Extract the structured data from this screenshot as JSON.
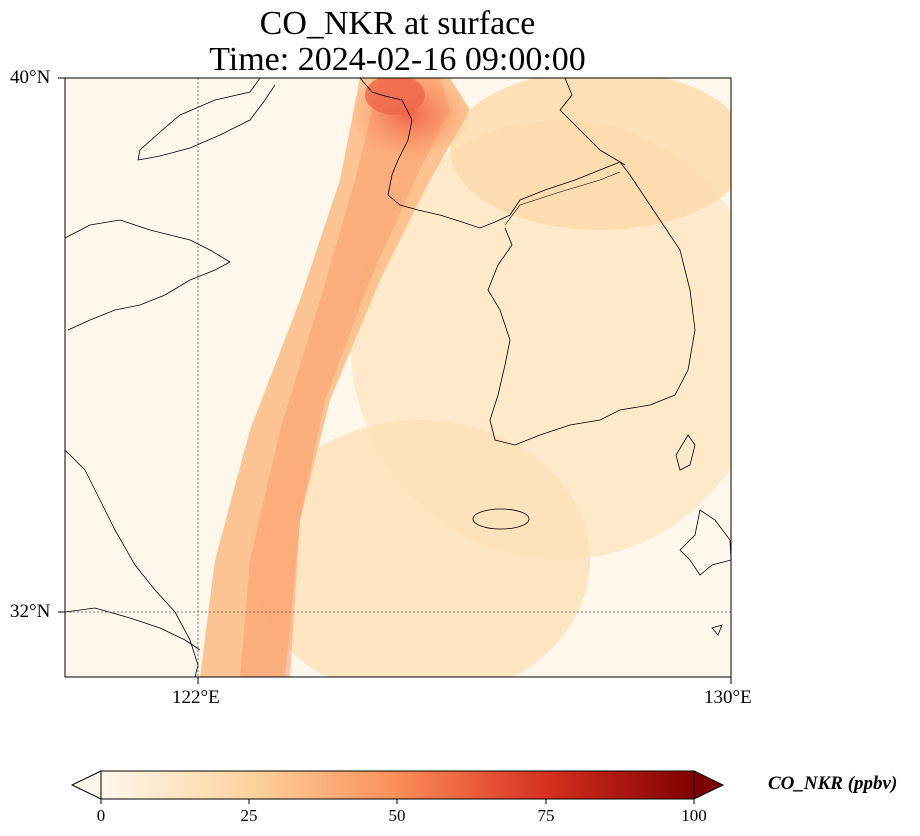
{
  "title": {
    "line1": "CO_NKR at surface",
    "line2": "Time: 2024-02-16 09:00:00"
  },
  "map": {
    "lon_range": [
      121,
      130
    ],
    "lat_range": [
      31.1,
      40
    ],
    "gridlines": {
      "lon": [
        122
      ],
      "lat": [
        32
      ]
    },
    "x_ticks": [
      "122°E",
      "130°E"
    ],
    "y_ticks": [
      "40°N",
      "32°N"
    ]
  },
  "colorbar": {
    "label": "CO_NKR (ppbv)",
    "ticks": [
      "0",
      "25",
      "50",
      "75",
      "100"
    ],
    "colormap": "OrRd",
    "vmin": 0,
    "vmax": 100,
    "extend": "both"
  },
  "colors": {
    "low": "#fff7ec",
    "mid": "#fdd49e",
    "high": "#ef6548",
    "max": "#7f0000"
  }
}
